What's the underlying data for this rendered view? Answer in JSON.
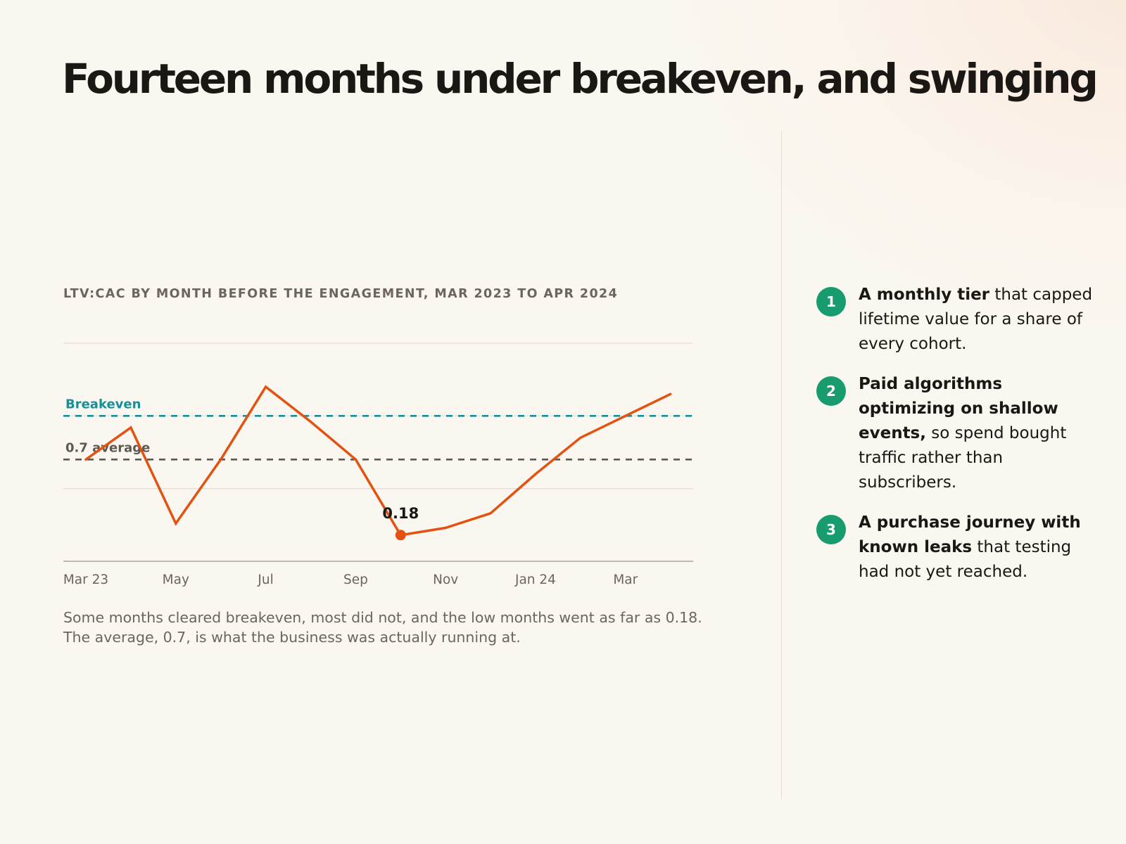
{
  "title": "Fourteen months under breakeven, and swinging",
  "chart_data": {
    "type": "line",
    "title": "LTV:CAC BY MONTH BEFORE THE ENGAGEMENT, MAR 2023 TO APR 2024",
    "x": [
      "Mar 2023",
      "Apr 2023",
      "May 2023",
      "Jun 2023",
      "Jul 2023",
      "Aug 2023",
      "Sep 2023",
      "Oct 2023",
      "Nov 2023",
      "Dec 2023",
      "Jan 2024",
      "Feb 2024",
      "Mar 2024",
      "Apr 2024"
    ],
    "tick_labels": [
      "Mar 23",
      "May",
      "Jul",
      "Sep",
      "Nov",
      "Jan 24",
      "Mar"
    ],
    "tick_positions": [
      0,
      2,
      4,
      6,
      8,
      10,
      12
    ],
    "series": [
      {
        "values": [
          0.7,
          0.92,
          0.26,
          0.7,
          1.2,
          0.96,
          0.7,
          0.18,
          0.23,
          0.33,
          0.6,
          0.85,
          1.0,
          1.15
        ]
      }
    ],
    "ylim": [
      0,
      1.5
    ],
    "gridlines": [
      0.5,
      1.0,
      1.5
    ],
    "reference_lines": [
      {
        "label": "Breakeven",
        "value": 1.0,
        "color": "#15909a"
      },
      {
        "label": "0.7 average",
        "value": 0.7,
        "color": "#5e5852"
      }
    ],
    "annotations": [
      {
        "index": 7,
        "label": "0.18"
      }
    ],
    "line_color": "#e25311",
    "grid": true
  },
  "caption": {
    "line1": "Some months cleared breakeven, most did not, and the low months went as far as 0.18.",
    "line2": "The average, 0.7, is what the business was actually running at."
  },
  "points": [
    {
      "num": "1",
      "bold": "A monthly tier",
      "rest": " that capped lifetime value for a share of every cohort."
    },
    {
      "num": "2",
      "bold": "Paid algorithms optimizing on shallow events,",
      "rest": " so spend bought traffic rather than subscribers."
    },
    {
      "num": "3",
      "bold": "A purchase journey with known leaks",
      "rest": " that testing had not yet reached."
    }
  ],
  "colors": {
    "accent": "#e25311",
    "badge": "#189b6e",
    "breakeven": "#15909a",
    "average": "#5e5852"
  }
}
